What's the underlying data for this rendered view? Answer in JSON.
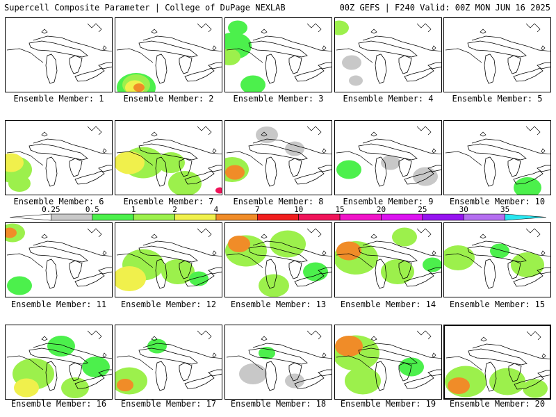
{
  "header": {
    "left": "Supercell Composite Parameter | College of DuPage NEXLAB",
    "right": "00Z GEFS | F240 Valid: 00Z MON JUN 16 2025"
  },
  "colorbar": {
    "ticks": [
      "0.25",
      "0.5",
      "1",
      "2",
      "4",
      "7",
      "10",
      "15",
      "20",
      "25",
      "30",
      "35"
    ],
    "colors": [
      "#ffffff",
      "#c8c8c8",
      "#4cf04c",
      "#9cf04c",
      "#f0f04c",
      "#f08c28",
      "#f01e1e",
      "#f0145a",
      "#f014c8",
      "#dc14f0",
      "#9614f0",
      "#b46ef0",
      "#28e6f0"
    ]
  },
  "members": [
    {
      "label": "Ensemble Member: 1"
    },
    {
      "label": "Ensemble Member: 2"
    },
    {
      "label": "Ensemble Member: 3"
    },
    {
      "label": "Ensemble Member: 4"
    },
    {
      "label": "Ensemble Member: 5"
    },
    {
      "label": "Ensemble Member: 6"
    },
    {
      "label": "Ensemble Member: 7"
    },
    {
      "label": "Ensemble Member: 8"
    },
    {
      "label": "Ensemble Member: 9"
    },
    {
      "label": "Ensemble Member: 10"
    },
    {
      "label": "Ensemble Member: 11"
    },
    {
      "label": "Ensemble Member: 12"
    },
    {
      "label": "Ensemble Member: 13"
    },
    {
      "label": "Ensemble Member: 14"
    },
    {
      "label": "Ensemble Member: 15"
    },
    {
      "label": "Ensemble Member: 16"
    },
    {
      "label": "Ensemble Member: 17"
    },
    {
      "label": "Ensemble Member: 18"
    },
    {
      "label": "Ensemble Member: 19"
    },
    {
      "label": "Ensemble Member: 20"
    }
  ],
  "selected_member": 20,
  "icons": {
    "map": "great-lakes-outline-map",
    "colorbar": "scp-color-scale"
  }
}
